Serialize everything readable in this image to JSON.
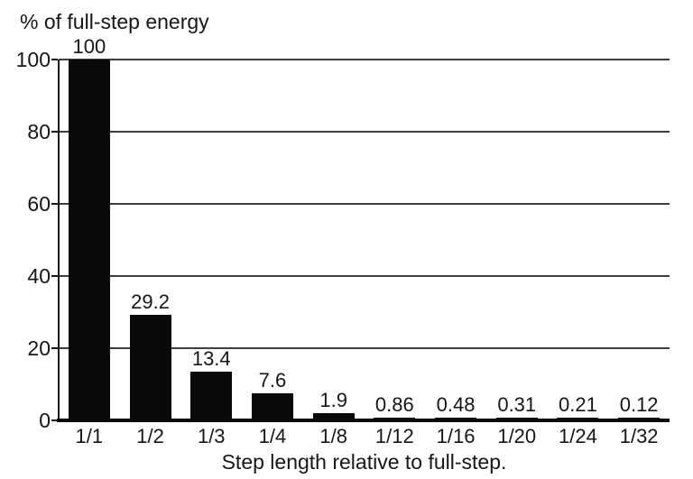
{
  "figure": {
    "background_color": "#ffffff",
    "bar_color": "#0a0a0a",
    "axis_color": "#1a1a1a",
    "gridline_color": "#3f3f3f",
    "text_color": "#161616"
  },
  "chart_data": {
    "type": "bar",
    "title": "% of full-step energy",
    "xlabel": "Step length relative to full-step.",
    "ylabel": "",
    "categories": [
      "1/1",
      "1/2",
      "1/3",
      "1/4",
      "1/8",
      "1/12",
      "1/16",
      "1/20",
      "1/24",
      "1/32"
    ],
    "values": [
      100,
      29.2,
      13.4,
      7.6,
      1.9,
      0.86,
      0.48,
      0.31,
      0.21,
      0.12
    ],
    "value_labels": [
      "100",
      "29.2",
      "13.4",
      "7.6",
      "1.9",
      "0.86",
      "0.48",
      "0.31",
      "0.21",
      "0.12"
    ],
    "y_ticks": [
      0,
      20,
      40,
      60,
      80,
      100
    ],
    "y_tick_labels": [
      "0",
      "20",
      "40",
      "60",
      "80",
      "100"
    ],
    "ylim": [
      0,
      100
    ],
    "grid": "horizontal",
    "legend": "none",
    "series": [
      {
        "name": "% of full-step energy",
        "values": [
          100,
          29.2,
          13.4,
          7.6,
          1.9,
          0.86,
          0.48,
          0.31,
          0.21,
          0.12
        ]
      }
    ]
  }
}
